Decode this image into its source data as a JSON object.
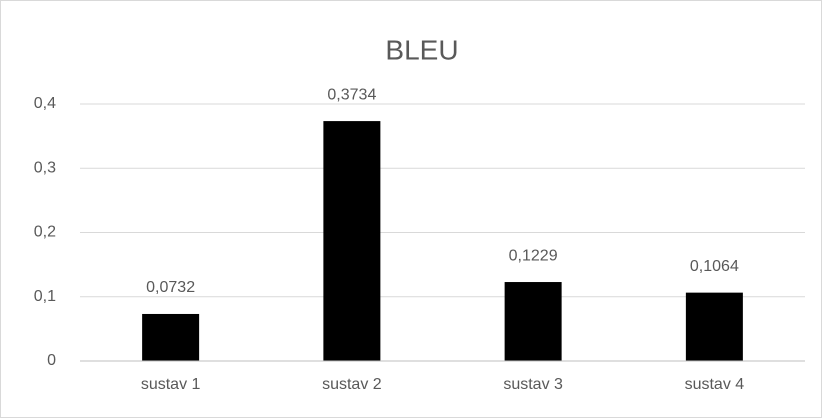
{
  "chart_data": {
    "type": "bar",
    "title": "BLEU",
    "categories": [
      "sustav 1",
      "sustav 2",
      "sustav 3",
      "sustav 4"
    ],
    "values": [
      0.0732,
      0.3734,
      0.1229,
      0.1064
    ],
    "value_labels": [
      "0,0732",
      "0,3734",
      "0,1229",
      "0,1064"
    ],
    "color": "#000000",
    "ylim": [
      0,
      0.4
    ],
    "yticks": [
      0,
      {
        "value": 0.1,
        "label": "0,1"
      },
      {
        "value": 0.2,
        "label": "0,2"
      },
      {
        "value": 0.3,
        "label": "0,3"
      },
      {
        "value": 0.4,
        "label": "0,4"
      }
    ],
    "grid": true
  }
}
